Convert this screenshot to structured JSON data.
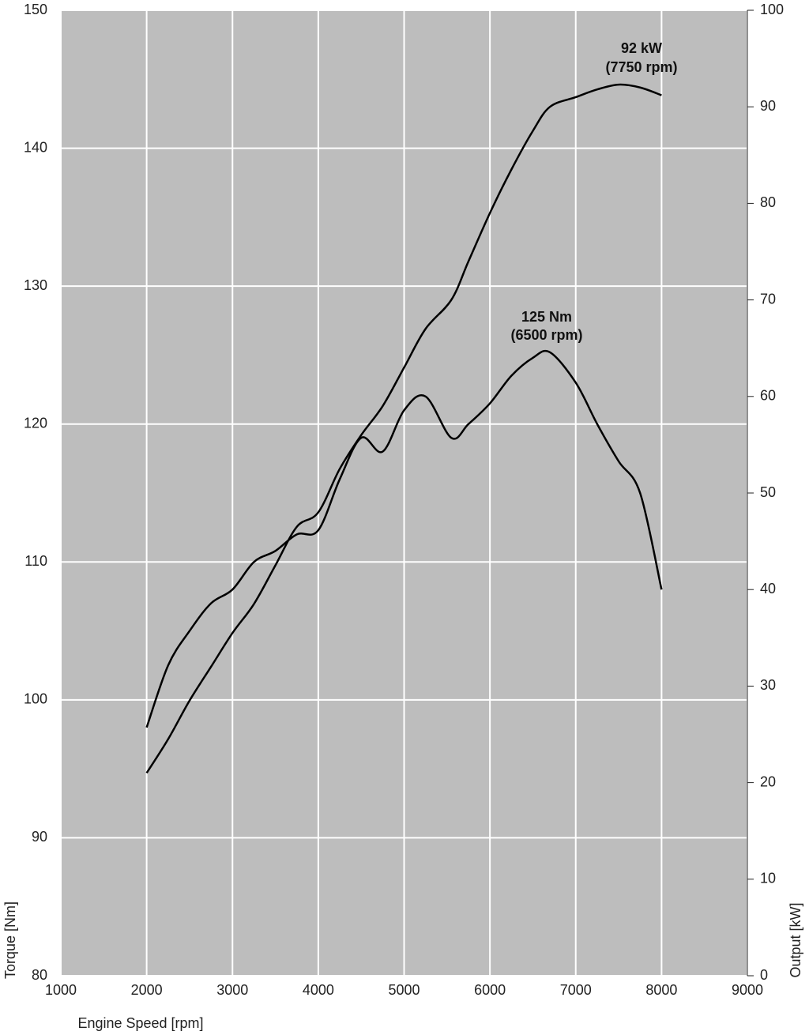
{
  "chart_data": {
    "type": "line",
    "x": [
      2000,
      2250,
      2500,
      2750,
      3000,
      3250,
      3500,
      3750,
      4000,
      4250,
      4500,
      4750,
      5000,
      5250,
      5550,
      5750,
      6000,
      6250,
      6500,
      6700,
      7000,
      7250,
      7500,
      7750,
      8000
    ],
    "series": [
      {
        "color": "#000000",
        "axis": "y",
        "values": [
          98,
          102.5,
          105,
          107,
          108,
          110,
          110.8,
          112,
          112.3,
          116,
          119,
          118,
          121,
          122,
          119,
          120,
          121.5,
          123.5,
          124.8,
          125.2,
          123,
          120,
          117.3,
          115,
          108
        ]
      },
      {
        "color": "#000000",
        "axis": "y2",
        "values": [
          21,
          24.5,
          28.5,
          32,
          35.5,
          38.5,
          42.5,
          46.5,
          48,
          52.5,
          56,
          59,
          63,
          67,
          70,
          74,
          79,
          83.5,
          87.5,
          90,
          91,
          91.8,
          92.3,
          92,
          91.2
        ]
      }
    ],
    "annotations": [
      "92 kW",
      "(7750 rpm)",
      "125 Nm",
      "(6500 rpm)"
    ],
    "xlabel": "Engine Speed [rpm]",
    "ylabel": "Torque [Nm]",
    "y2label": "Output [kW]",
    "xlim": [
      1000,
      9000
    ],
    "xticks": [
      1000,
      2000,
      3000,
      4000,
      5000,
      6000,
      7000,
      8000,
      9000
    ],
    "ylim": [
      80,
      150
    ],
    "yticks": [
      80,
      90,
      100,
      110,
      120,
      130,
      140,
      150
    ],
    "y2lim": [
      0,
      100
    ],
    "y2ticks": [
      0,
      10,
      20,
      30,
      40,
      50,
      60,
      70,
      80,
      90,
      100
    ],
    "grid": true,
    "background": "#bdbdbd"
  }
}
